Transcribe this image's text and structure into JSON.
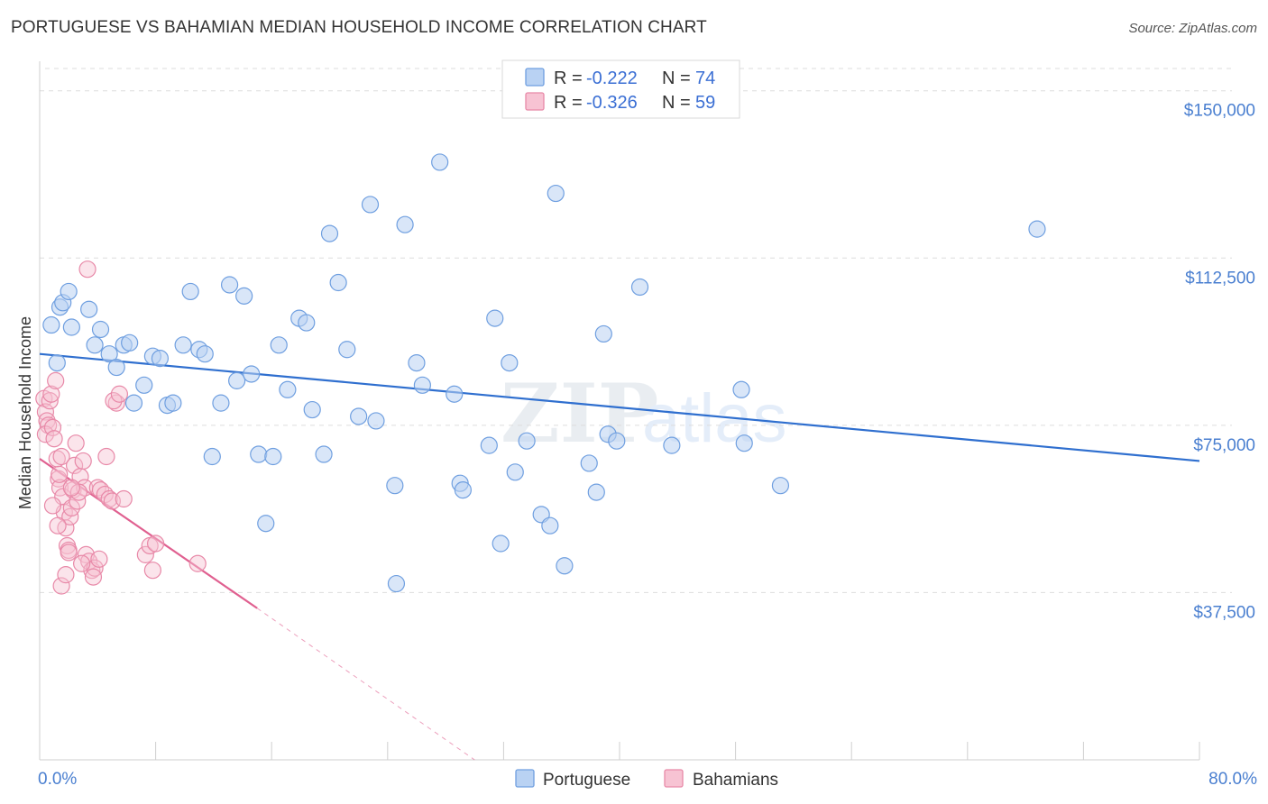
{
  "title": "PORTUGUESE VS BAHAMIAN MEDIAN HOUSEHOLD INCOME CORRELATION CHART",
  "source": "Source: ZipAtlas.com",
  "watermark": {
    "zip": "ZIP",
    "atlas": "atlas"
  },
  "colors": {
    "portuguese": "#6f9fe0",
    "portuguese_fill": "#b9d2f3",
    "portuguese_line": "#2f6fcf",
    "bahamians": "#e889a8",
    "bahamians_fill": "#f7c3d3",
    "bahamians_line": "#e06090",
    "tick_text": "#4a7fd0"
  },
  "legend": {
    "portuguese": {
      "r_label": "R = ",
      "r_value": "-0.222",
      "n_label": "N = ",
      "n_value": "74"
    },
    "bahamians": {
      "r_label": "R = ",
      "r_value": "-0.326",
      "n_label": "N = ",
      "n_value": "59"
    }
  },
  "bottom_legend": {
    "portuguese": "Portuguese",
    "bahamians": "Bahamians"
  },
  "chart_data": {
    "type": "scatter",
    "title": "PORTUGUESE VS BAHAMIAN MEDIAN HOUSEHOLD INCOME CORRELATION CHART",
    "xlabel": "",
    "ylabel": "Median Household Income",
    "xlim": [
      0,
      80
    ],
    "ylim": [
      0,
      155000
    ],
    "y_ticks": [
      37500,
      75000,
      112500,
      150000
    ],
    "y_tick_labels": [
      "$37,500",
      "$75,000",
      "$112,500",
      "$150,000"
    ],
    "x_tick_labels": [
      "0.0%",
      "80.0%"
    ],
    "grid": true,
    "series": [
      {
        "name": "Portuguese",
        "R": -0.222,
        "N": 74,
        "trend": {
          "x0": 0,
          "y0": 91000,
          "x1": 80,
          "y1": 67000
        },
        "points": [
          [
            0.8,
            97500
          ],
          [
            1.2,
            89000
          ],
          [
            1.4,
            101500
          ],
          [
            1.6,
            102500
          ],
          [
            2.0,
            105000
          ],
          [
            2.2,
            97000
          ],
          [
            3.4,
            101000
          ],
          [
            3.8,
            93000
          ],
          [
            4.2,
            96500
          ],
          [
            4.8,
            91000
          ],
          [
            5.3,
            88000
          ],
          [
            5.8,
            93000
          ],
          [
            6.2,
            93500
          ],
          [
            6.5,
            80000
          ],
          [
            7.2,
            84000
          ],
          [
            7.8,
            90500
          ],
          [
            8.3,
            90000
          ],
          [
            8.8,
            79500
          ],
          [
            9.2,
            80000
          ],
          [
            9.9,
            93000
          ],
          [
            10.4,
            105000
          ],
          [
            11.0,
            92000
          ],
          [
            11.4,
            91000
          ],
          [
            11.9,
            68000
          ],
          [
            12.5,
            80000
          ],
          [
            13.1,
            106500
          ],
          [
            13.6,
            85000
          ],
          [
            14.1,
            104000
          ],
          [
            14.6,
            86500
          ],
          [
            15.1,
            68500
          ],
          [
            15.6,
            53000
          ],
          [
            16.1,
            68000
          ],
          [
            16.5,
            93000
          ],
          [
            17.1,
            83000
          ],
          [
            17.9,
            99000
          ],
          [
            18.4,
            98000
          ],
          [
            18.8,
            78500
          ],
          [
            19.6,
            68500
          ],
          [
            20.0,
            118000
          ],
          [
            20.6,
            107000
          ],
          [
            21.2,
            92000
          ],
          [
            22.0,
            77000
          ],
          [
            22.8,
            124500
          ],
          [
            23.2,
            76000
          ],
          [
            24.5,
            61500
          ],
          [
            25.2,
            120000
          ],
          [
            26.0,
            89000
          ],
          [
            26.4,
            84000
          ],
          [
            27.6,
            134000
          ],
          [
            28.6,
            82000
          ],
          [
            29.0,
            62000
          ],
          [
            29.2,
            60500
          ],
          [
            31.0,
            70500
          ],
          [
            31.4,
            99000
          ],
          [
            31.8,
            48500
          ],
          [
            32.4,
            89000
          ],
          [
            32.8,
            64500
          ],
          [
            33.6,
            71500
          ],
          [
            34.6,
            55000
          ],
          [
            35.6,
            127000
          ],
          [
            35.2,
            52500
          ],
          [
            36.2,
            43500
          ],
          [
            37.9,
            66500
          ],
          [
            38.4,
            60000
          ],
          [
            38.9,
            95500
          ],
          [
            39.2,
            73000
          ],
          [
            39.8,
            71500
          ],
          [
            41.4,
            106000
          ],
          [
            43.6,
            70500
          ],
          [
            48.4,
            83000
          ],
          [
            48.6,
            71000
          ],
          [
            51.1,
            61500
          ],
          [
            68.8,
            119000
          ],
          [
            24.6,
            39500
          ]
        ]
      },
      {
        "name": "Bahamians",
        "R": -0.326,
        "N": 59,
        "trend_solid": {
          "x0": 0,
          "y0": 67500,
          "x1": 15,
          "y1": 34000
        },
        "trend_dashed": {
          "x0": 15,
          "y0": 34000,
          "x1": 30,
          "y1": 0
        },
        "points": [
          [
            0.3,
            81000
          ],
          [
            0.4,
            78000
          ],
          [
            0.5,
            76000
          ],
          [
            0.6,
            75000
          ],
          [
            0.4,
            73000
          ],
          [
            0.7,
            80500
          ],
          [
            0.8,
            82000
          ],
          [
            0.9,
            74500
          ],
          [
            1.0,
            72000
          ],
          [
            1.1,
            85000
          ],
          [
            1.2,
            67500
          ],
          [
            1.3,
            63000
          ],
          [
            1.4,
            61000
          ],
          [
            1.5,
            68000
          ],
          [
            1.6,
            59000
          ],
          [
            1.7,
            55500
          ],
          [
            1.8,
            52000
          ],
          [
            1.9,
            48000
          ],
          [
            2.0,
            47000
          ],
          [
            2.1,
            54500
          ],
          [
            2.2,
            56500
          ],
          [
            2.3,
            60500
          ],
          [
            2.4,
            66000
          ],
          [
            2.5,
            71000
          ],
          [
            2.6,
            58000
          ],
          [
            2.8,
            63500
          ],
          [
            3.0,
            67000
          ],
          [
            3.1,
            61000
          ],
          [
            3.2,
            46000
          ],
          [
            3.4,
            44500
          ],
          [
            3.6,
            42500
          ],
          [
            3.8,
            43000
          ],
          [
            4.0,
            61000
          ],
          [
            4.2,
            60500
          ],
          [
            4.5,
            59500
          ],
          [
            4.8,
            58500
          ],
          [
            5.0,
            58000
          ],
          [
            5.3,
            80000
          ],
          [
            5.1,
            80500
          ],
          [
            5.5,
            82000
          ],
          [
            7.3,
            46000
          ],
          [
            7.6,
            48000
          ],
          [
            7.8,
            42500
          ],
          [
            8.0,
            48500
          ],
          [
            4.6,
            68000
          ],
          [
            2.9,
            44000
          ],
          [
            3.3,
            110000
          ],
          [
            1.25,
            52500
          ],
          [
            1.35,
            64000
          ],
          [
            2.7,
            60000
          ],
          [
            4.1,
            45000
          ],
          [
            1.5,
            39000
          ],
          [
            2.0,
            46500
          ],
          [
            1.8,
            41500
          ],
          [
            0.9,
            57000
          ],
          [
            3.7,
            41000
          ],
          [
            10.9,
            44000
          ],
          [
            5.8,
            58500
          ],
          [
            2.2,
            61000
          ]
        ]
      }
    ]
  }
}
